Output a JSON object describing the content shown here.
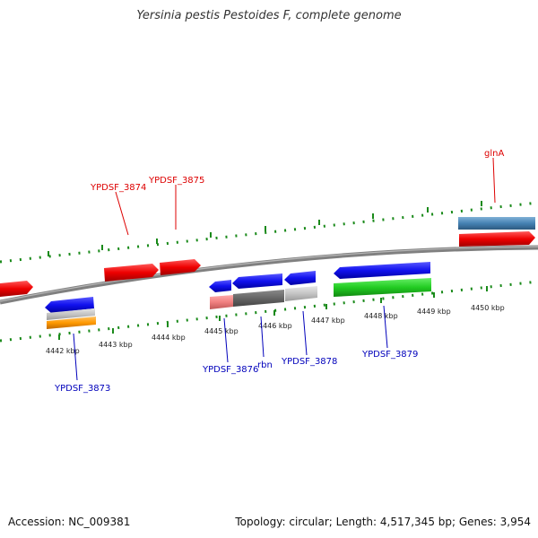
{
  "title": "Yersinia pestis Pestoides F, complete genome",
  "accession": "Accession: NC_009381",
  "stats": "Topology: circular; Length: 4,517,345 bp; Genes: 3,954",
  "colors": {
    "backbone": "#808080",
    "tick": "#1a8a1a",
    "forward_label": "#dd0000",
    "reverse_label": "#0000bb"
  },
  "kbp_labels": [
    "4442 kbp",
    "4443 kbp",
    "4444 kbp",
    "4445 kbp",
    "4446 kbp",
    "4447 kbp",
    "4448 kbp",
    "4449 kbp",
    "4450 kbp"
  ],
  "gene_labels": {
    "ypdsf_3873": "YPDSF_3873",
    "ypdsf_3874": "YPDSF_3874",
    "ypdsf_3875": "YPDSF_3875",
    "ypdsf_3876": "YPDSF_3876",
    "rbn": "rbn",
    "ypdsf_3878": "YPDSF_3878",
    "ypdsf_3879": "YPDSF_3879",
    "glnA": "glnA"
  }
}
